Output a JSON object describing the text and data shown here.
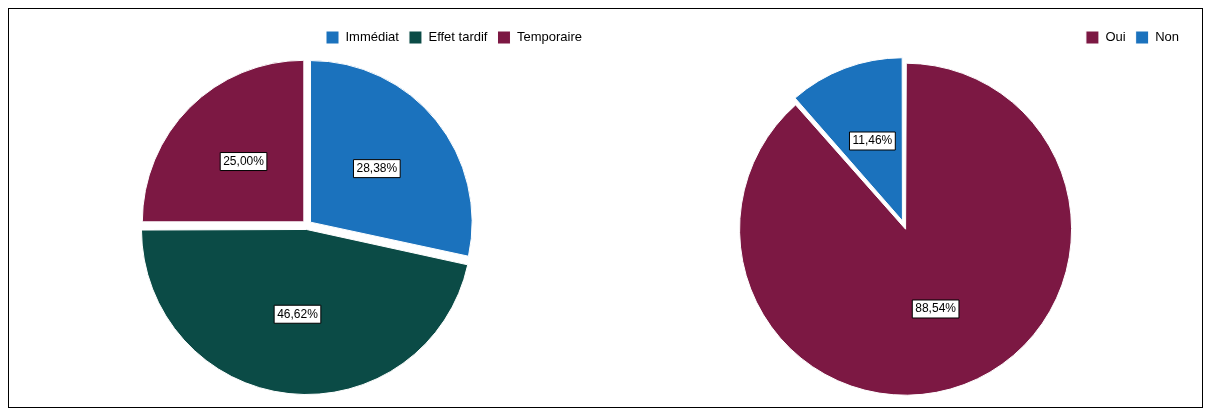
{
  "chart_data": [
    {
      "type": "pie",
      "categories": [
        "Immédiat",
        "Effet tardif",
        "Temporaire"
      ],
      "values": [
        28.38,
        46.62,
        25.0
      ],
      "colors": [
        "#1b72bd",
        "#0b4b46",
        "#7c1843"
      ],
      "value_labels": [
        "28,38%",
        "46,62%",
        "25,00%"
      ],
      "legend": "top right"
    },
    {
      "type": "pie",
      "categories": [
        "Oui",
        "Non"
      ],
      "values": [
        88.54,
        11.46
      ],
      "colors": [
        "#7c1843",
        "#1b72bd"
      ],
      "value_labels": [
        "88,54%",
        "11,46%"
      ],
      "legend": "top right"
    }
  ]
}
